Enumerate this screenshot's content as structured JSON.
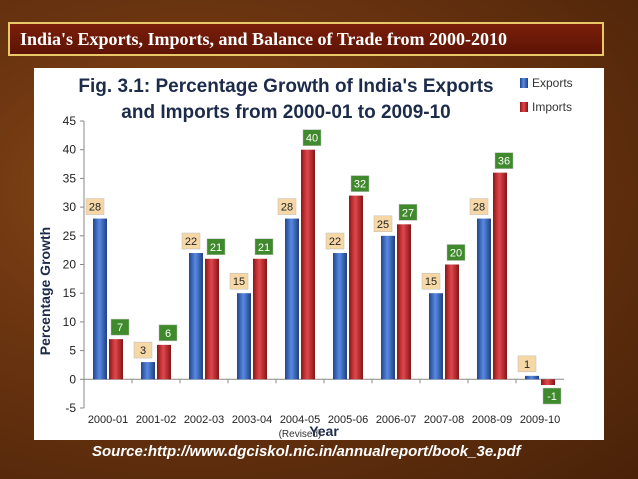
{
  "slide": {
    "title": "India's Exports, Imports, and Balance of Trade from 2000-2010",
    "source": "Source:http://www.dgciskol.nic.in/annualreport/book_3e.pdf"
  },
  "chart_data": {
    "type": "bar",
    "title_line1": "Fig. 3.1: Percentage Growth of India's Exports",
    "title_line2": "and Imports from 2000-01 to 2009-10",
    "xlabel": "Year",
    "ylabel": "Percentage Growth",
    "ylim": [
      -5,
      45
    ],
    "yticks": [
      -5,
      0,
      5,
      10,
      15,
      20,
      25,
      30,
      35,
      40,
      45
    ],
    "categories": [
      "2000-01",
      "2001-02",
      "2002-03",
      "2003-04",
      "2004-05",
      "2005-06",
      "2006-07",
      "2007-08",
      "2008-09",
      "2009-10"
    ],
    "category_note": {
      "index": 4,
      "text": "(Revised)"
    },
    "series": [
      {
        "name": "Exports",
        "color": "#2f5fb5",
        "values": [
          28,
          3,
          22,
          15,
          28,
          22,
          25,
          15,
          28,
          0.6
        ]
      },
      {
        "name": "Imports",
        "color": "#c0282c",
        "values": [
          7,
          6,
          21,
          21,
          40,
          32,
          27,
          20,
          36,
          -1
        ]
      }
    ],
    "data_labels": {
      "Exports": [
        "28",
        "3",
        "22",
        "15",
        "28",
        "22",
        "25",
        "15",
        "28",
        "1"
      ],
      "Imports": [
        "7",
        "6",
        "21",
        "21",
        "40",
        "32",
        "27",
        "20",
        "36",
        "-1"
      ]
    },
    "legend_position": "top-right",
    "grid": false
  }
}
